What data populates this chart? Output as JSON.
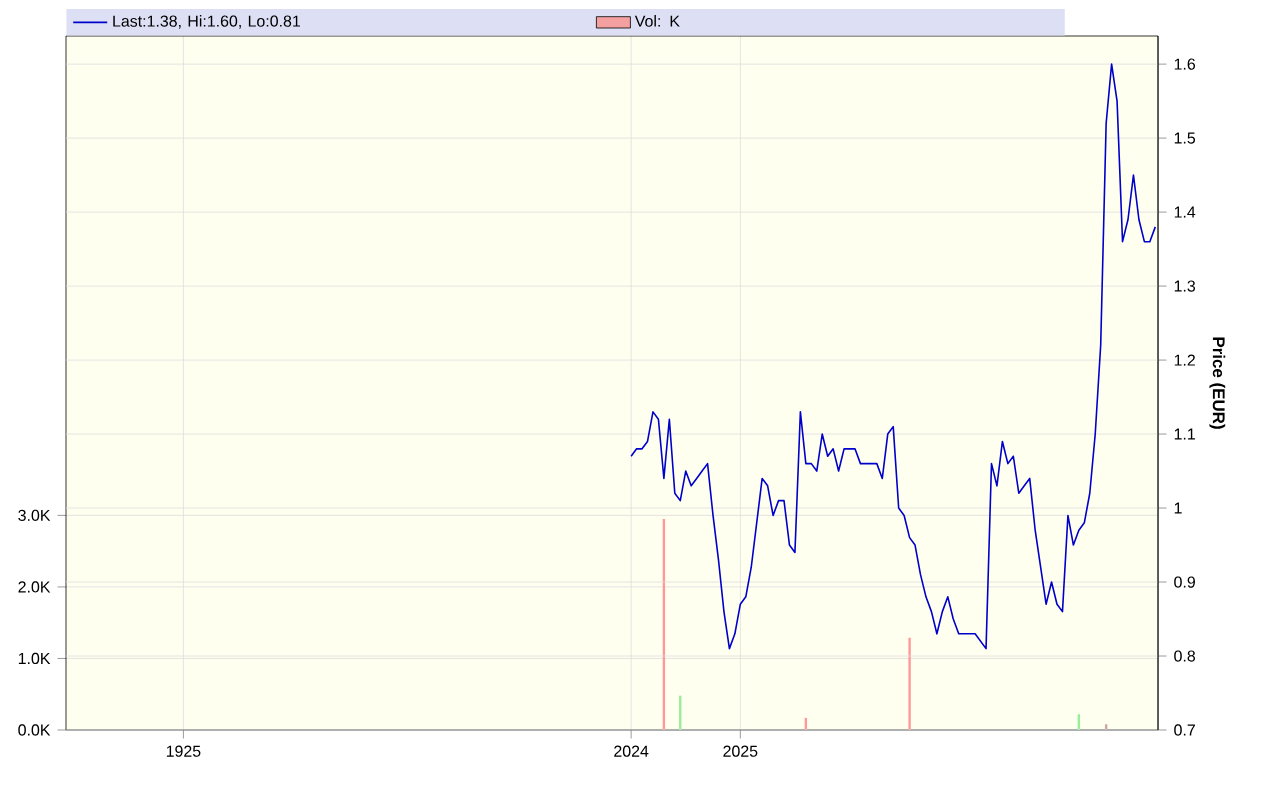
{
  "chart_data": {
    "type": "line",
    "y2label": "Price (EUR)",
    "categories": [
      null,
      null,
      null,
      null,
      null,
      null,
      null,
      null,
      null,
      null,
      null,
      null,
      null,
      null,
      null,
      null,
      null,
      null,
      null,
      null,
      null,
      "1925",
      null,
      null,
      null,
      null,
      null,
      null,
      null,
      null,
      null,
      null,
      null,
      null,
      null,
      null,
      null,
      null,
      null,
      null,
      null,
      null,
      null,
      null,
      null,
      null,
      null,
      null,
      null,
      null,
      null,
      null,
      null,
      null,
      null,
      null,
      null,
      null,
      null,
      null,
      null,
      null,
      null,
      null,
      null,
      null,
      null,
      null,
      null,
      null,
      null,
      null,
      null,
      null,
      null,
      null,
      null,
      null,
      null,
      null,
      null,
      null,
      null,
      null,
      null,
      null,
      null,
      null,
      null,
      null,
      null,
      null,
      null,
      null,
      null,
      null,
      null,
      null,
      null,
      null,
      null,
      null,
      null,
      "2024",
      null,
      null,
      null,
      null,
      null,
      null,
      null,
      null,
      null,
      null,
      null,
      null,
      null,
      null,
      null,
      null,
      null,
      null,
      null,
      "2025",
      null,
      null,
      null,
      null,
      null,
      null,
      null,
      null,
      null,
      null,
      null,
      null,
      null,
      null,
      null,
      null,
      null,
      null,
      null,
      null,
      null,
      null,
      null,
      null,
      null,
      null,
      null,
      null,
      null,
      null,
      null,
      null,
      null,
      null,
      null,
      null,
      null,
      null,
      null,
      null,
      null,
      null,
      null,
      null,
      null,
      null,
      null,
      null,
      null,
      null,
      null,
      null,
      null,
      null,
      null,
      null,
      null,
      null,
      null,
      null,
      null,
      null,
      null,
      null,
      null,
      null,
      null,
      null,
      null,
      null,
      null,
      null,
      null,
      null,
      null,
      null
    ],
    "series": [
      {
        "name": "Last:1.38, Hi:1.60, Lo:0.81",
        "axis": "y2",
        "color": "#0000cc",
        "values": [
          null,
          null,
          null,
          null,
          null,
          null,
          null,
          null,
          null,
          null,
          null,
          null,
          null,
          null,
          null,
          null,
          null,
          null,
          null,
          null,
          null,
          null,
          null,
          null,
          null,
          null,
          null,
          null,
          null,
          null,
          null,
          null,
          null,
          null,
          null,
          null,
          null,
          null,
          null,
          null,
          null,
          null,
          null,
          null,
          null,
          null,
          null,
          null,
          null,
          null,
          null,
          null,
          null,
          null,
          null,
          null,
          null,
          null,
          null,
          null,
          null,
          null,
          null,
          null,
          null,
          null,
          null,
          null,
          null,
          null,
          null,
          null,
          null,
          null,
          null,
          null,
          null,
          null,
          null,
          null,
          null,
          null,
          null,
          null,
          null,
          null,
          null,
          null,
          null,
          null,
          null,
          null,
          null,
          null,
          null,
          null,
          null,
          null,
          null,
          null,
          null,
          null,
          null,
          1.07,
          1.08,
          1.08,
          1.09,
          1.13,
          1.12,
          1.04,
          1.12,
          1.02,
          1.01,
          1.05,
          1.03,
          1.04,
          1.05,
          1.06,
          0.99,
          0.93,
          0.86,
          0.81,
          0.83,
          0.87,
          0.88,
          0.92,
          0.98,
          1.04,
          1.03,
          0.99,
          1.01,
          1.01,
          0.95,
          0.94,
          1.13,
          1.06,
          1.06,
          1.05,
          1.1,
          1.07,
          1.08,
          1.05,
          1.08,
          1.08,
          1.08,
          1.06,
          1.06,
          1.06,
          1.06,
          1.04,
          1.1,
          1.11,
          1.0,
          0.99,
          0.96,
          0.95,
          0.91,
          0.88,
          0.86,
          0.83,
          0.86,
          0.88,
          0.85,
          0.83,
          0.83,
          0.83,
          0.83,
          0.82,
          0.81,
          1.06,
          1.03,
          1.09,
          1.06,
          1.07,
          1.02,
          1.03,
          1.04,
          0.97,
          0.92,
          0.87,
          0.9,
          0.87,
          0.86,
          0.99,
          0.95,
          0.97,
          0.98,
          1.02,
          1.1,
          1.22,
          1.52,
          1.6,
          1.55,
          1.36,
          1.39,
          1.45,
          1.39,
          1.36,
          1.36,
          1.38
        ]
      },
      {
        "name": "Vol: K",
        "type": "bar",
        "color": "#f4a0a0",
        "values": [
          null,
          null,
          null,
          null,
          null,
          null,
          null,
          null,
          null,
          null,
          null,
          null,
          null,
          null,
          null,
          null,
          null,
          null,
          null,
          null,
          null,
          null,
          null,
          null,
          null,
          null,
          null,
          null,
          null,
          null,
          null,
          null,
          null,
          null,
          null,
          null,
          null,
          null,
          null,
          null,
          null,
          null,
          null,
          null,
          null,
          null,
          null,
          null,
          null,
          null,
          null,
          null,
          null,
          null,
          null,
          null,
          null,
          null,
          null,
          null,
          null,
          null,
          null,
          null,
          null,
          null,
          null,
          null,
          null,
          null,
          null,
          null,
          null,
          null,
          null,
          null,
          null,
          null,
          null,
          null,
          null,
          null,
          null,
          null,
          null,
          null,
          null,
          null,
          null,
          null,
          null,
          null,
          null,
          null,
          null,
          null,
          null,
          null,
          null,
          null,
          null,
          null,
          null,
          null,
          null,
          null,
          null,
          null,
          null,
          2.95,
          null,
          null,
          0.48,
          null,
          null,
          null,
          null,
          null,
          null,
          null,
          null,
          null,
          null,
          null,
          null,
          null,
          null,
          null,
          null,
          null,
          null,
          null,
          null,
          null,
          null,
          0.17,
          null,
          null,
          null,
          null,
          null,
          null,
          null,
          null,
          null,
          null,
          null,
          null,
          null,
          null,
          null,
          null,
          null,
          null,
          1.29,
          null,
          null,
          null,
          null,
          null,
          null,
          null,
          null,
          null,
          null,
          null,
          null,
          null,
          null,
          null,
          null,
          null,
          null,
          null,
          null,
          null,
          null,
          null,
          null,
          null,
          null,
          null,
          null,
          null,
          null,
          0.22,
          null,
          null,
          null,
          null,
          0.08,
          null,
          null,
          null,
          null,
          null,
          null,
          null,
          null,
          null
        ],
        "colors": [
          null,
          null,
          null,
          null,
          null,
          null,
          null,
          null,
          null,
          null,
          null,
          null,
          null,
          null,
          null,
          null,
          null,
          null,
          null,
          null,
          null,
          null,
          null,
          null,
          null,
          null,
          null,
          null,
          null,
          null,
          null,
          null,
          null,
          null,
          null,
          null,
          null,
          null,
          null,
          null,
          null,
          null,
          null,
          null,
          null,
          null,
          null,
          null,
          null,
          null,
          null,
          null,
          null,
          null,
          null,
          null,
          null,
          null,
          null,
          null,
          null,
          null,
          null,
          null,
          null,
          null,
          null,
          null,
          null,
          null,
          null,
          null,
          null,
          null,
          null,
          null,
          null,
          null,
          null,
          null,
          null,
          null,
          null,
          null,
          null,
          null,
          null,
          null,
          null,
          null,
          null,
          null,
          null,
          null,
          null,
          null,
          null,
          null,
          null,
          null,
          null,
          null,
          null,
          null,
          null,
          null,
          null,
          null,
          null,
          "#ff9999",
          null,
          null,
          "#99ee99",
          null,
          null,
          null,
          null,
          null,
          null,
          null,
          null,
          null,
          null,
          null,
          null,
          null,
          null,
          null,
          null,
          null,
          null,
          null,
          null,
          null,
          null,
          "#ff9999",
          null,
          null,
          null,
          null,
          null,
          null,
          null,
          null,
          null,
          null,
          null,
          null,
          null,
          null,
          null,
          null,
          null,
          null,
          "#ff9999",
          null,
          null,
          null,
          null,
          null,
          null,
          null,
          null,
          null,
          null,
          null,
          null,
          null,
          null,
          null,
          null,
          null,
          null,
          null,
          null,
          null,
          null,
          null,
          null,
          null,
          null,
          null,
          null,
          null,
          null,
          "#99ee99",
          null,
          null,
          null,
          null,
          "#c8a8a8",
          null,
          null,
          null,
          null,
          null,
          null,
          null,
          null,
          null
        ]
      }
    ],
    "ylim": [
      0,
      9.7
    ],
    "yticks": [
      {
        "value": 0,
        "label": "0.0K"
      },
      {
        "value": 1,
        "label": "1.0K"
      },
      {
        "value": 2,
        "label": "2.0K"
      },
      {
        "value": 3,
        "label": "3.0K"
      }
    ],
    "y2lim": [
      0.7,
      1.638
    ],
    "y2ticks": [
      0.7,
      0.8,
      0.9,
      1,
      1.1,
      1.2,
      1.3,
      1.4,
      1.5,
      1.6
    ],
    "grid": true,
    "legend": "top"
  }
}
